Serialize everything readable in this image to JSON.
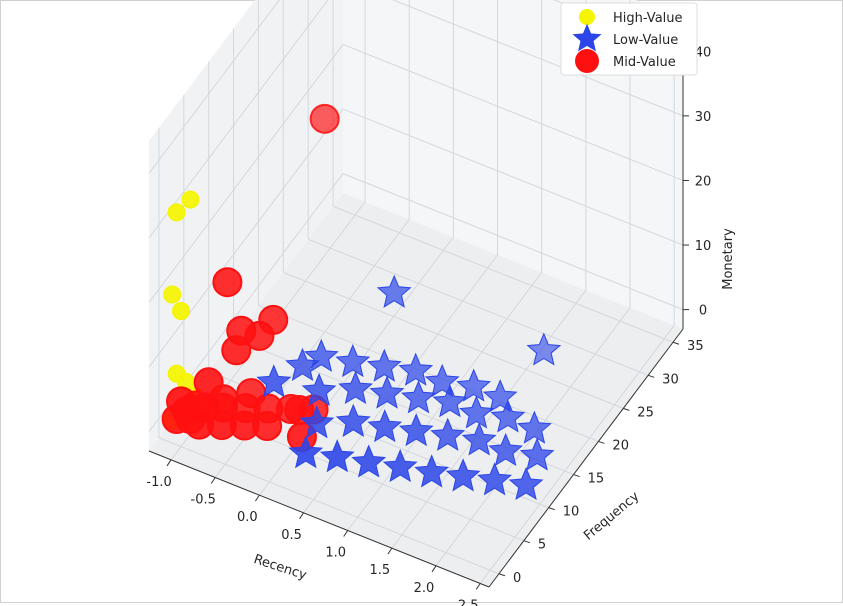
{
  "chart_data": {
    "type": "scatter",
    "projection": "3d",
    "xlabel": "Recency",
    "ylabel": "Frequency",
    "zlabel": "Monetary",
    "x_ticks": [
      "-1.0",
      "-0.5",
      "0.0",
      "0.5",
      "1.0",
      "1.5",
      "2.0",
      "2.5"
    ],
    "y_ticks": [
      "0",
      "5",
      "10",
      "15",
      "20",
      "25",
      "30",
      "35"
    ],
    "z_ticks": [
      "0",
      "10",
      "20",
      "30",
      "40"
    ],
    "xlim": [
      -1.25,
      2.6
    ],
    "ylim": [
      -2,
      37
    ],
    "zlim": [
      -3,
      45
    ],
    "grid": true,
    "legend_position": "top-right",
    "series": [
      {
        "name": "High-Value",
        "marker": "circle",
        "color": "#f5f500",
        "points": [
          [
            -1.05,
            0,
            33
          ],
          [
            -0.95,
            1,
            34.5
          ],
          [
            -1.1,
            0,
            20
          ],
          [
            -1.0,
            0,
            18
          ],
          [
            -1.05,
            0,
            8
          ],
          [
            -1.0,
            1,
            6
          ],
          [
            -0.9,
            1,
            4
          ],
          [
            -1.05,
            0,
            2
          ],
          [
            -0.95,
            2,
            3
          ],
          [
            -1.0,
            1,
            1
          ],
          [
            -0.85,
            2,
            1.5
          ],
          [
            -1.1,
            0,
            0.5
          ]
        ]
      },
      {
        "name": "Low-Value",
        "marker": "star",
        "color": "#2b45e8",
        "points": [
          [
            0.4,
            18,
            10
          ],
          [
            -0.4,
            8,
            2
          ],
          [
            0.3,
            2,
            1
          ],
          [
            0.6,
            3,
            1
          ],
          [
            0.9,
            4,
            0.8
          ],
          [
            1.2,
            5,
            0.7
          ],
          [
            1.5,
            6,
            0.5
          ],
          [
            1.8,
            7,
            0.5
          ],
          [
            2.1,
            8,
            0.5
          ],
          [
            2.4,
            9,
            0.4
          ],
          [
            0.2,
            6,
            1
          ],
          [
            0.5,
            8,
            0.8
          ],
          [
            0.8,
            9,
            0.6
          ],
          [
            1.1,
            10,
            0.6
          ],
          [
            1.4,
            11,
            0.5
          ],
          [
            1.7,
            12,
            0.4
          ],
          [
            2.0,
            12,
            0.4
          ],
          [
            2.3,
            13,
            0.3
          ],
          [
            0.0,
            10,
            0.8
          ],
          [
            0.3,
            12,
            0.7
          ],
          [
            0.6,
            13,
            0.6
          ],
          [
            0.9,
            14,
            0.5
          ],
          [
            1.2,
            15,
            0.5
          ],
          [
            1.5,
            15,
            0.4
          ],
          [
            1.8,
            16,
            0.4
          ],
          [
            2.1,
            16,
            0.3
          ],
          [
            -0.2,
            14,
            0.9
          ],
          [
            0.1,
            15,
            0.7
          ],
          [
            0.4,
            16,
            0.6
          ],
          [
            0.7,
            17,
            0.6
          ],
          [
            1.0,
            17,
            0.5
          ],
          [
            1.3,
            18,
            0.4
          ],
          [
            1.6,
            18,
            0.4
          ],
          [
            -0.3,
            12,
            1
          ],
          [
            1.7,
            25,
            1
          ]
        ]
      },
      {
        "name": "Mid-Value",
        "marker": "circle",
        "color": "#ff1010",
        "points": [
          [
            -0.5,
            20,
            30
          ],
          [
            -0.7,
            4,
            20
          ],
          [
            -0.45,
            6,
            11
          ],
          [
            -0.35,
            7,
            13
          ],
          [
            -0.6,
            5,
            12
          ],
          [
            -0.8,
            2,
            6
          ],
          [
            -0.6,
            4,
            10
          ],
          [
            0.0,
            6,
            2
          ],
          [
            -1.0,
            0,
            4
          ],
          [
            -1.05,
            0,
            1
          ],
          [
            -0.95,
            1,
            0.5
          ],
          [
            -1.05,
            2,
            0.2
          ],
          [
            -0.9,
            3,
            0.5
          ],
          [
            -0.75,
            4,
            0.3
          ],
          [
            -0.55,
            5,
            0.3
          ],
          [
            -0.35,
            6,
            0.3
          ],
          [
            -0.15,
            7,
            0.3
          ],
          [
            0.05,
            8,
            0.3
          ],
          [
            -0.85,
            1,
            0.2
          ],
          [
            -0.65,
            2,
            0.2
          ],
          [
            -0.45,
            3,
            0.2
          ],
          [
            -0.25,
            4,
            0.2
          ],
          [
            -1.0,
            3,
            0.3
          ],
          [
            -0.8,
            5,
            0.3
          ],
          [
            -0.6,
            7,
            0.3
          ],
          [
            0.2,
            3,
            2
          ]
        ]
      }
    ]
  }
}
